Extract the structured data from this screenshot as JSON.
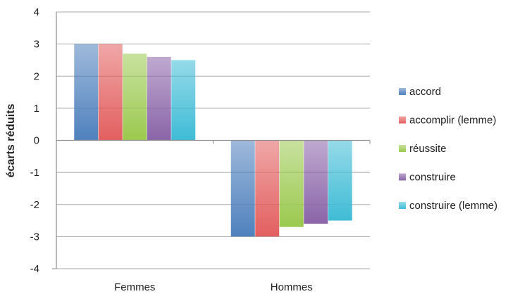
{
  "chart_data": {
    "type": "bar",
    "title": "",
    "xlabel": "",
    "ylabel": "écarts réduits",
    "ylim": [
      -4,
      4
    ],
    "yticks": [
      "-4",
      "-3",
      "-2",
      "-1",
      "0",
      "1",
      "2",
      "3",
      "4"
    ],
    "grid": true,
    "legend_position": "right",
    "categories": [
      "Femmes",
      "Hommes"
    ],
    "series": [
      {
        "name": "accord",
        "values": [
          3.0,
          -3.0
        ],
        "color": "#4f81bd"
      },
      {
        "name": "accomplir (lemme)",
        "values": [
          3.0,
          -3.0
        ],
        "color": "#e35f5f"
      },
      {
        "name": "réussite",
        "values": [
          2.7,
          -2.7
        ],
        "color": "#9bc94f"
      },
      {
        "name": "construire",
        "values": [
          2.6,
          -2.6
        ],
        "color": "#8a64a8"
      },
      {
        "name": "construire (lemme)",
        "values": [
          2.5,
          -2.5
        ],
        "color": "#3fbcd6"
      }
    ]
  }
}
